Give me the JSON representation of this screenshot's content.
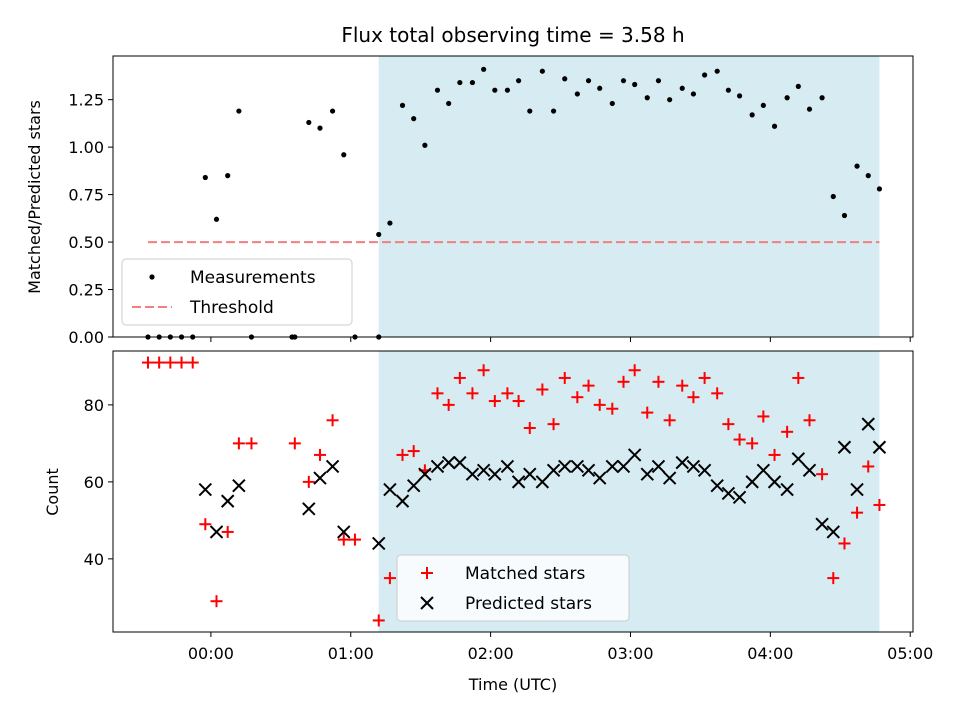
{
  "chart_data": {
    "title": "Flux total observing time = 3.58 h",
    "xlabel": "Time (UTC)",
    "x_unit": "hours since 00:00 UTC",
    "xlim": [
      -0.7,
      5.02
    ],
    "x_ticks": [
      0,
      1,
      2,
      3,
      4,
      5
    ],
    "x_tick_labels": [
      "00:00",
      "01:00",
      "02:00",
      "03:00",
      "04:00",
      "05:00"
    ],
    "shaded_region": {
      "x": [
        1.2,
        4.78
      ],
      "color": "#add8e6"
    },
    "colors": {
      "measurements": "#000000",
      "threshold": "#f08080",
      "matched": "#ff0000",
      "predicted": "#000000",
      "shade": "#add8e6"
    },
    "panels": [
      {
        "type": "scatter",
        "ylabel": "Matched/Predicted stars",
        "ylim": [
          0,
          1.48
        ],
        "y_ticks": [
          0,
          0.25,
          0.5,
          0.75,
          1.0,
          1.25
        ],
        "y_tick_labels": [
          "0.00",
          "0.25",
          "0.50",
          "0.75",
          "1.00",
          "1.25"
        ],
        "legend": [
          "Measurements",
          "Threshold"
        ],
        "threshold": {
          "y": 0.5,
          "x": [
            -0.45,
            4.78
          ]
        },
        "measurements": {
          "x": [
            -0.45,
            -0.37,
            -0.29,
            -0.21,
            -0.13,
            -0.04,
            0.04,
            0.12,
            0.2,
            0.29,
            0.6,
            0.7,
            0.78,
            0.87,
            0.95,
            1.03,
            1.2,
            1.28,
            1.37,
            1.45,
            1.53,
            1.62,
            1.7,
            1.78,
            1.87,
            1.95,
            2.03,
            2.12,
            2.2,
            2.28,
            2.37,
            2.45,
            2.53,
            2.62,
            2.7,
            2.78,
            2.87,
            2.95,
            3.03,
            3.12,
            3.2,
            3.28,
            3.37,
            3.45,
            3.53,
            3.62,
            3.7,
            3.78,
            3.87,
            3.95,
            4.03,
            4.12,
            4.2,
            4.28,
            4.37,
            4.45,
            4.53,
            4.62,
            4.7,
            4.78
          ],
          "y": [
            0,
            0,
            0,
            0,
            0,
            0.84,
            0.62,
            0.85,
            1.19,
            0,
            0,
            1.13,
            1.1,
            1.19,
            0.96,
            0,
            0,
            0.6,
            1.22,
            1.15,
            1.01,
            1.3,
            1.23,
            1.34,
            1.34,
            1.41,
            1.3,
            1.3,
            1.35,
            1.19,
            1.4,
            1.19,
            1.36,
            1.28,
            1.35,
            1.31,
            1.23,
            1.35,
            1.33,
            1.26,
            1.35,
            1.25,
            1.31,
            1.28,
            1.38,
            1.4,
            1.3,
            1.27,
            1.17,
            1.22,
            1.11,
            1.26,
            1.32,
            1.2,
            1.26,
            0.74,
            0.64,
            0.9,
            0.85,
            0.78
          ]
        },
        "extra_points": [
          {
            "x": 0.58,
            "y": 0
          },
          {
            "x": 1.2,
            "y": 0.54
          }
        ]
      },
      {
        "type": "scatter",
        "ylabel": "Count",
        "ylim": [
          21,
          94
        ],
        "y_ticks": [
          40,
          60,
          80
        ],
        "y_tick_labels": [
          "40",
          "60",
          "80"
        ],
        "legend": [
          "Matched stars",
          "Predicted stars"
        ],
        "series": [
          {
            "name": "Matched stars",
            "marker": "+",
            "x": [
              -0.45,
              -0.37,
              -0.29,
              -0.21,
              -0.13,
              -0.04,
              0.04,
              0.12,
              0.2,
              0.29,
              0.6,
              0.7,
              0.78,
              0.87,
              0.95,
              1.03,
              1.2,
              1.28,
              1.37,
              1.45,
              1.53,
              1.62,
              1.7,
              1.78,
              1.87,
              1.95,
              2.03,
              2.12,
              2.2,
              2.28,
              2.37,
              2.45,
              2.53,
              2.62,
              2.7,
              2.78,
              2.87,
              2.95,
              3.03,
              3.12,
              3.2,
              3.28,
              3.37,
              3.45,
              3.53,
              3.62,
              3.7,
              3.78,
              3.87,
              3.95,
              4.03,
              4.12,
              4.2,
              4.28,
              4.37,
              4.45,
              4.53,
              4.62,
              4.7,
              4.78
            ],
            "y": [
              91,
              91,
              91,
              91,
              91,
              49,
              29,
              47,
              70,
              70,
              70,
              60,
              67,
              76,
              45,
              45,
              24,
              35,
              67,
              68,
              63,
              83,
              80,
              87,
              83,
              89,
              81,
              83,
              81,
              74,
              84,
              75,
              87,
              82,
              85,
              80,
              79,
              86,
              89,
              78,
              86,
              76,
              85,
              82,
              87,
              83,
              75,
              71,
              70,
              77,
              67,
              73,
              87,
              76,
              62,
              35,
              44,
              52,
              64,
              54
            ]
          },
          {
            "name": "Predicted stars",
            "marker": "x",
            "x": [
              -0.04,
              0.04,
              0.12,
              0.2,
              0.7,
              0.78,
              0.87,
              0.95,
              1.2,
              1.28,
              1.37,
              1.45,
              1.53,
              1.62,
              1.7,
              1.78,
              1.87,
              1.95,
              2.03,
              2.12,
              2.2,
              2.28,
              2.37,
              2.45,
              2.53,
              2.62,
              2.7,
              2.78,
              2.87,
              2.95,
              3.03,
              3.12,
              3.2,
              3.28,
              3.37,
              3.45,
              3.53,
              3.62,
              3.7,
              3.78,
              3.87,
              3.95,
              4.03,
              4.12,
              4.2,
              4.28,
              4.37,
              4.45,
              4.53,
              4.62,
              4.7,
              4.78
            ],
            "y": [
              58,
              47,
              55,
              59,
              53,
              61,
              64,
              47,
              44,
              58,
              55,
              59,
              62,
              64,
              65,
              65,
              62,
              63,
              62,
              64,
              60,
              62,
              60,
              63,
              64,
              64,
              63,
              61,
              64,
              64,
              67,
              62,
              64,
              61,
              65,
              64,
              63,
              59,
              57,
              56,
              60,
              63,
              60,
              58,
              66,
              63,
              49,
              47,
              69,
              58,
              75,
              69
            ]
          }
        ]
      }
    ]
  }
}
